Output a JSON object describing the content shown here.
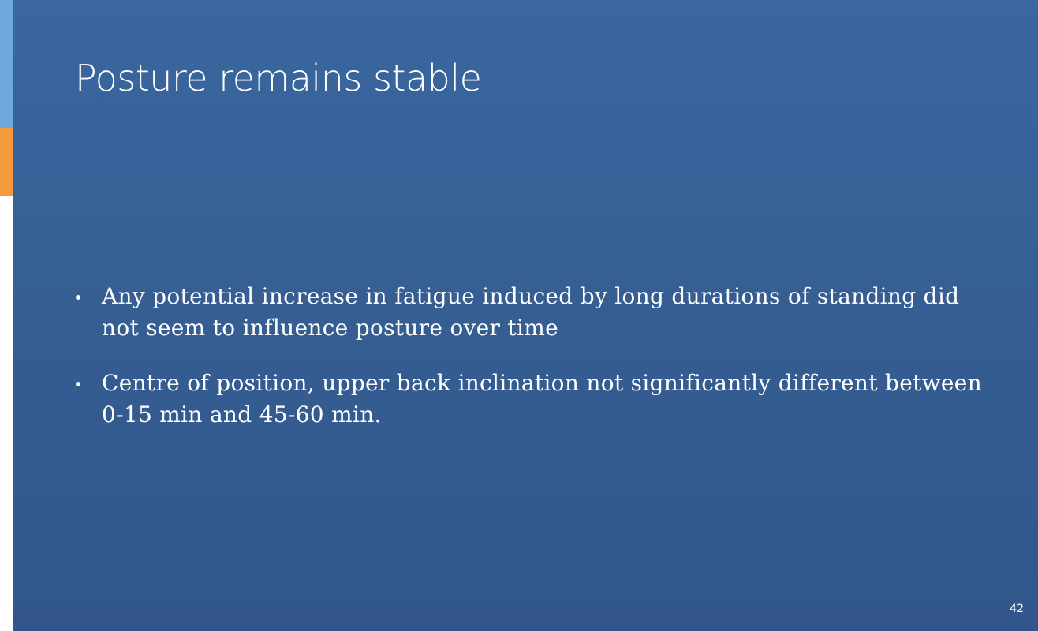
{
  "slide": {
    "title": "Posture remains stable",
    "bullets": [
      {
        "text": "Any potential increase in fatigue induced by long durations of standing did not seem to influence posture over time"
      },
      {
        "text": "Centre of position, upper back inclination not significantly different between 0-15 min and 45-60 min."
      }
    ],
    "page_number": "42"
  },
  "colors": {
    "background": "#355d91",
    "accent_blue": "#6fa8dc",
    "accent_orange": "#f59a3b",
    "text": "#ffffff"
  }
}
